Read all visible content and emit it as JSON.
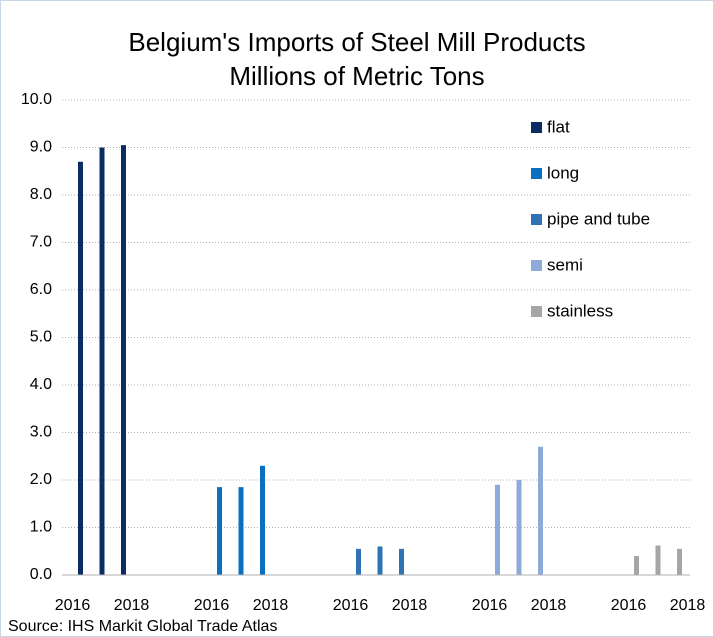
{
  "chart_data": {
    "type": "bar",
    "title": "Belgium's Imports of Steel Mill Products",
    "subtitle": "Millions of Metric Tons",
    "source": "Source: IHS Markit Global Trade Atlas",
    "categories": [
      "2016",
      null,
      "2018"
    ],
    "series": [
      {
        "name": "flat",
        "color": "#0c2c64",
        "values": [
          8.7,
          9.0,
          9.05
        ]
      },
      {
        "name": "long",
        "color": "#0a70c2",
        "values": [
          1.85,
          1.85,
          2.3
        ]
      },
      {
        "name": "pipe and tube",
        "color": "#2f73b5",
        "values": [
          0.55,
          0.6,
          0.55
        ]
      },
      {
        "name": "semi",
        "color": "#8eaadb",
        "values": [
          1.9,
          2.0,
          2.7
        ]
      },
      {
        "name": "stainless",
        "color": "#a6a6a6",
        "values": [
          0.4,
          0.62,
          0.55
        ]
      }
    ],
    "ylim": [
      0,
      10
    ],
    "yticks": [
      {
        "value": 0,
        "label": "0.0"
      },
      {
        "value": 1,
        "label": "1.0"
      },
      {
        "value": 2,
        "label": "2.0"
      },
      {
        "value": 3,
        "label": "3.0"
      },
      {
        "value": 4,
        "label": "4.0"
      },
      {
        "value": 5,
        "label": "5.0"
      },
      {
        "value": 6,
        "label": "6.0"
      },
      {
        "value": 7,
        "label": "7.0"
      },
      {
        "value": 8,
        "label": "8.0"
      },
      {
        "value": 9,
        "label": "9.0"
      },
      {
        "value": 10,
        "label": "10.0"
      }
    ],
    "grid": true,
    "legend": "top-right"
  }
}
